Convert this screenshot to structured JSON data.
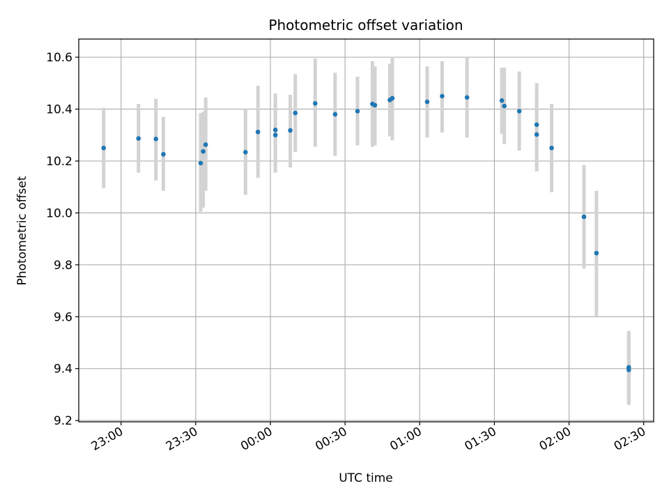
{
  "chart_data": {
    "type": "scatter",
    "title": "Photometric offset variation",
    "xlabel": "UTC time",
    "ylabel": "Photometric offset",
    "xlim": [
      "22:43",
      "02:34"
    ],
    "ylim": [
      9.195,
      10.67
    ],
    "x_ticks": [
      "23:00",
      "23:30",
      "00:00",
      "00:30",
      "01:00",
      "01:30",
      "02:00",
      "02:30"
    ],
    "y_ticks": [
      "9.2",
      "9.4",
      "9.6",
      "9.8",
      "10.0",
      "10.2",
      "10.4",
      "10.6"
    ],
    "grid": true,
    "colors": {
      "point": "#1f77b4",
      "errorbar": "#d3d3d3",
      "grid": "#b0b0b0"
    },
    "series": [
      {
        "points": [
          {
            "t": "22:53",
            "y": 10.25,
            "lo": 10.095,
            "hi": 10.405
          },
          {
            "t": "23:07",
            "y": 10.287,
            "lo": 10.155,
            "hi": 10.42
          },
          {
            "t": "23:14",
            "y": 10.285,
            "lo": 10.125,
            "hi": 10.44
          },
          {
            "t": "23:17",
            "y": 10.226,
            "lo": 10.085,
            "hi": 10.37
          },
          {
            "t": "23:32",
            "y": 10.192,
            "lo": 10.005,
            "hi": 10.385
          },
          {
            "t": "23:33",
            "y": 10.237,
            "lo": 10.02,
            "hi": 10.39
          },
          {
            "t": "23:34",
            "y": 10.263,
            "lo": 10.085,
            "hi": 10.445
          },
          {
            "t": "23:50",
            "y": 10.234,
            "lo": 10.07,
            "hi": 10.4
          },
          {
            "t": "23:55",
            "y": 10.312,
            "lo": 10.135,
            "hi": 10.49
          },
          {
            "t": "00:02",
            "y": 10.3,
            "lo": 10.155,
            "hi": 10.45
          },
          {
            "t": "00:02",
            "y": 10.32,
            "lo": 10.175,
            "hi": 10.46
          },
          {
            "t": "00:08",
            "y": 10.318,
            "lo": 10.175,
            "hi": 10.455
          },
          {
            "t": "00:10",
            "y": 10.385,
            "lo": 10.235,
            "hi": 10.535
          },
          {
            "t": "00:18",
            "y": 10.422,
            "lo": 10.255,
            "hi": 10.595
          },
          {
            "t": "00:26",
            "y": 10.38,
            "lo": 10.22,
            "hi": 10.54
          },
          {
            "t": "00:35",
            "y": 10.392,
            "lo": 10.26,
            "hi": 10.525
          },
          {
            "t": "00:41",
            "y": 10.42,
            "lo": 10.255,
            "hi": 10.585
          },
          {
            "t": "00:42",
            "y": 10.415,
            "lo": 10.26,
            "hi": 10.565
          },
          {
            "t": "00:48",
            "y": 10.435,
            "lo": 10.295,
            "hi": 10.575
          },
          {
            "t": "00:49",
            "y": 10.442,
            "lo": 10.28,
            "hi": 10.6
          },
          {
            "t": "01:03",
            "y": 10.428,
            "lo": 10.29,
            "hi": 10.565
          },
          {
            "t": "01:09",
            "y": 10.45,
            "lo": 10.31,
            "hi": 10.585
          },
          {
            "t": "01:19",
            "y": 10.445,
            "lo": 10.29,
            "hi": 10.6
          },
          {
            "t": "01:33",
            "y": 10.433,
            "lo": 10.305,
            "hi": 10.56
          },
          {
            "t": "01:34",
            "y": 10.412,
            "lo": 10.265,
            "hi": 10.56
          },
          {
            "t": "01:40",
            "y": 10.392,
            "lo": 10.24,
            "hi": 10.545
          },
          {
            "t": "01:47",
            "y": 10.34,
            "lo": 10.18,
            "hi": 10.5
          },
          {
            "t": "01:47",
            "y": 10.302,
            "lo": 10.16,
            "hi": 10.445
          },
          {
            "t": "01:53",
            "y": 10.25,
            "lo": 10.08,
            "hi": 10.42
          },
          {
            "t": "02:06",
            "y": 9.985,
            "lo": 9.785,
            "hi": 10.185
          },
          {
            "t": "02:11",
            "y": 9.845,
            "lo": 9.6,
            "hi": 10.085
          },
          {
            "t": "02:24",
            "y": 9.405,
            "lo": 9.265,
            "hi": 9.545
          },
          {
            "t": "02:24",
            "y": 9.395,
            "lo": 9.26,
            "hi": 9.53
          }
        ]
      }
    ]
  }
}
